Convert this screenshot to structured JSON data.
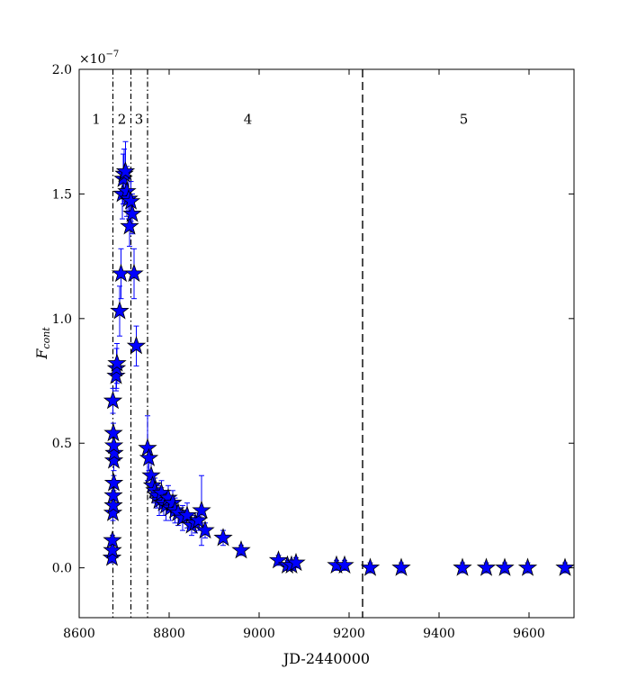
{
  "chart_data": {
    "type": "scatter",
    "title": "",
    "xlabel": "JD-2440000",
    "ylabel_main": "F",
    "ylabel_sub": "cont",
    "y_scale_base": "×10",
    "y_scale_exp": "−7",
    "xlim": [
      8600,
      9700
    ],
    "ylim": [
      -0.2,
      2.0
    ],
    "x_ticks": [
      8600,
      8800,
      9000,
      9200,
      9400,
      9600
    ],
    "y_ticks": [
      0.0,
      0.5,
      1.0,
      1.5,
      2.0
    ],
    "x_tick_labels": [
      "8600",
      "8800",
      "9000",
      "9200",
      "9400",
      "9600"
    ],
    "y_tick_labels": [
      "0.0",
      "0.5",
      "1.0",
      "1.5",
      "2.0"
    ],
    "grid": false,
    "marker_color": "#0000ff",
    "errorbar_color": "#0000ff",
    "dashdot_lines_x": [
      8675,
      8715,
      8752
    ],
    "dashed_lines_x": [
      9230
    ],
    "regions": [
      {
        "label": "1",
        "x": 8638,
        "y": 1.8
      },
      {
        "label": "2",
        "x": 8695,
        "y": 1.8
      },
      {
        "label": "3",
        "x": 8733,
        "y": 1.8
      },
      {
        "label": "4",
        "x": 8975,
        "y": 1.8
      },
      {
        "label": "5",
        "x": 9455,
        "y": 1.8
      }
    ],
    "series": [
      {
        "points": [
          [
            8673,
            0.04,
            0.02
          ],
          [
            8674,
            0.07,
            0.02
          ],
          [
            8674,
            0.11,
            0.02
          ],
          [
            8675,
            0.22,
            0.03
          ],
          [
            8676,
            0.25,
            0.03
          ],
          [
            8676,
            0.29,
            0.03
          ],
          [
            8677,
            0.34,
            0.03
          ],
          [
            8677,
            0.43,
            0.04
          ],
          [
            8678,
            0.46,
            0.04
          ],
          [
            8677,
            0.49,
            0.04
          ],
          [
            8676,
            0.54,
            0.04
          ],
          [
            8675,
            0.67,
            0.05
          ],
          [
            8682,
            0.77,
            0.06
          ],
          [
            8683,
            0.8,
            0.08
          ],
          [
            8684,
            0.82,
            0.08
          ],
          [
            8690,
            1.03,
            0.1
          ],
          [
            8693,
            1.18,
            0.1
          ],
          [
            8696,
            1.5,
            0.1
          ],
          [
            8698,
            1.56,
            0.1
          ],
          [
            8700,
            1.58,
            0.1
          ],
          [
            8703,
            1.59,
            0.12
          ],
          [
            8706,
            1.51,
            0.1
          ],
          [
            8710,
            1.48,
            0.08
          ],
          [
            8712,
            1.37,
            0.08
          ],
          [
            8715,
            1.47,
            0.08
          ],
          [
            8718,
            1.42,
            0.08
          ],
          [
            8722,
            1.18,
            0.1
          ],
          [
            8727,
            0.89,
            0.08
          ],
          [
            8752,
            0.48,
            0.13
          ],
          [
            8755,
            0.44,
            0.05
          ],
          [
            8760,
            0.37,
            0.05
          ],
          [
            8763,
            0.33,
            0.05
          ],
          [
            8768,
            0.31,
            0.05
          ],
          [
            8773,
            0.29,
            0.05
          ],
          [
            8778,
            0.27,
            0.06
          ],
          [
            8783,
            0.3,
            0.05
          ],
          [
            8788,
            0.26,
            0.05
          ],
          [
            8793,
            0.25,
            0.06
          ],
          [
            8798,
            0.28,
            0.05
          ],
          [
            8803,
            0.24,
            0.05
          ],
          [
            8808,
            0.26,
            0.05
          ],
          [
            8813,
            0.23,
            0.05
          ],
          [
            8820,
            0.22,
            0.05
          ],
          [
            8830,
            0.2,
            0.05
          ],
          [
            8840,
            0.21,
            0.05
          ],
          [
            8850,
            0.17,
            0.04
          ],
          [
            8858,
            0.18,
            0.04
          ],
          [
            8865,
            0.19,
            0.04
          ],
          [
            8872,
            0.23,
            0.14
          ],
          [
            8880,
            0.15,
            0.03
          ],
          [
            8920,
            0.12,
            0.03
          ],
          [
            8960,
            0.07,
            0.02
          ],
          [
            9043,
            0.03,
            0.02
          ],
          [
            9063,
            0.01,
            0.02
          ],
          [
            9072,
            0.01,
            0.02
          ],
          [
            9082,
            0.02,
            0.02
          ],
          [
            9172,
            0.01,
            0.02
          ],
          [
            9190,
            0.01,
            0.02
          ],
          [
            9247,
            0.0,
            0.02
          ],
          [
            9316,
            0.0,
            0.02
          ],
          [
            9452,
            0.0,
            0.02
          ],
          [
            9505,
            0.0,
            0.02
          ],
          [
            9546,
            0.0,
            0.02
          ],
          [
            9597,
            0.0,
            0.02
          ],
          [
            9680,
            0.0,
            0.02
          ]
        ]
      }
    ]
  }
}
